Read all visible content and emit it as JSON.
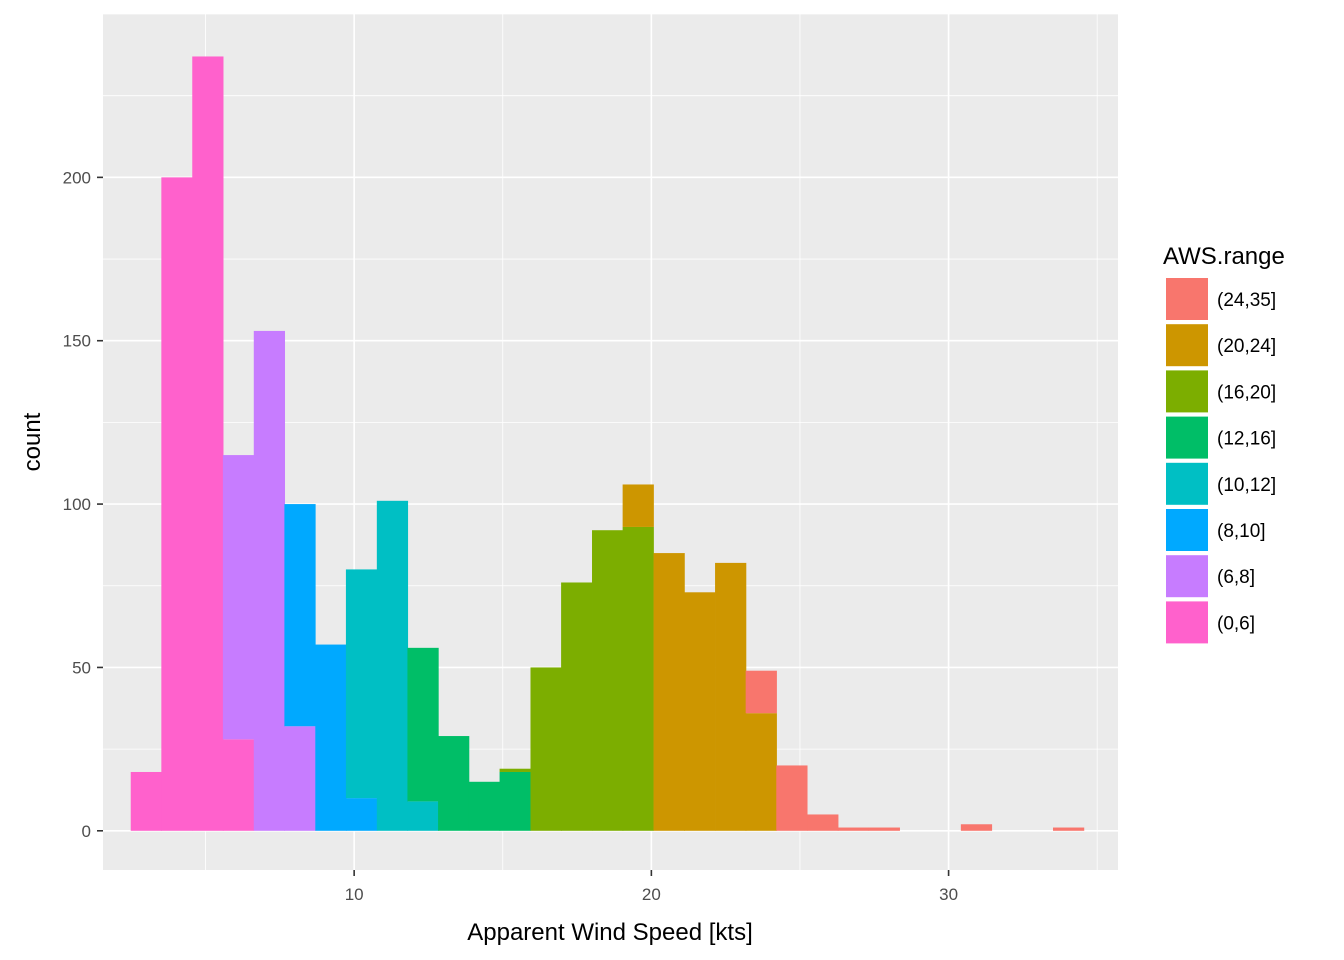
{
  "chart_data": {
    "type": "bar",
    "subtype": "stacked-histogram",
    "xlabel": "Apparent Wind Speed [kts]",
    "ylabel": "count",
    "xlim": [
      1.55,
      35.7
    ],
    "ylim": [
      -12,
      250
    ],
    "x_ticks": [
      10,
      20,
      30
    ],
    "y_ticks": [
      0,
      50,
      100,
      150,
      200
    ],
    "grid": true,
    "bin_width": 1.034,
    "legend": {
      "title": "AWS.range",
      "placement": "right",
      "entries": [
        {
          "label": "(24,35]",
          "color": "#F8766D"
        },
        {
          "label": "(20,24]",
          "color": "#CD9600"
        },
        {
          "label": "(16,20]",
          "color": "#7CAE00"
        },
        {
          "label": "(12,16]",
          "color": "#00BE67"
        },
        {
          "label": "(10,12]",
          "color": "#00BFC4"
        },
        {
          "label": "(8,10]",
          "color": "#00A9FF"
        },
        {
          "label": "(6,8]",
          "color": "#C77CFF"
        },
        {
          "label": "(0,6]",
          "color": "#FF61CC"
        }
      ]
    },
    "bins": [
      {
        "x": 3.0,
        "stack": [
          [
            "(0,6]",
            18
          ]
        ]
      },
      {
        "x": 4.03,
        "stack": [
          [
            "(0,6]",
            200
          ]
        ]
      },
      {
        "x": 5.07,
        "stack": [
          [
            "(0,6]",
            237
          ]
        ]
      },
      {
        "x": 6.1,
        "stack": [
          [
            "(0,6]",
            28
          ],
          [
            "(6,8]",
            87
          ]
        ]
      },
      {
        "x": 7.14,
        "stack": [
          [
            "(6,8]",
            153
          ]
        ]
      },
      {
        "x": 8.17,
        "stack": [
          [
            "(6,8]",
            32
          ],
          [
            "(8,10]",
            68
          ]
        ]
      },
      {
        "x": 9.21,
        "stack": [
          [
            "(8,10]",
            57
          ]
        ]
      },
      {
        "x": 10.24,
        "stack": [
          [
            "(8,10]",
            10
          ],
          [
            "(10,12]",
            70
          ]
        ]
      },
      {
        "x": 11.28,
        "stack": [
          [
            "(10,12]",
            101
          ]
        ]
      },
      {
        "x": 12.31,
        "stack": [
          [
            "(10,12]",
            9
          ],
          [
            "(12,16]",
            47
          ]
        ]
      },
      {
        "x": 13.34,
        "stack": [
          [
            "(12,16]",
            29
          ]
        ]
      },
      {
        "x": 14.38,
        "stack": [
          [
            "(12,16]",
            15
          ]
        ]
      },
      {
        "x": 15.41,
        "stack": [
          [
            "(12,16]",
            18
          ],
          [
            "(16,20]",
            1
          ]
        ]
      },
      {
        "x": 16.45,
        "stack": [
          [
            "(16,20]",
            50
          ]
        ]
      },
      {
        "x": 17.48,
        "stack": [
          [
            "(16,20]",
            76
          ]
        ]
      },
      {
        "x": 18.52,
        "stack": [
          [
            "(16,20]",
            92
          ]
        ]
      },
      {
        "x": 19.55,
        "stack": [
          [
            "(16,20]",
            93
          ],
          [
            "(20,24]",
            13
          ]
        ]
      },
      {
        "x": 20.59,
        "stack": [
          [
            "(20,24]",
            85
          ]
        ]
      },
      {
        "x": 21.62,
        "stack": [
          [
            "(20,24]",
            73
          ]
        ]
      },
      {
        "x": 22.66,
        "stack": [
          [
            "(20,24]",
            82
          ]
        ]
      },
      {
        "x": 23.69,
        "stack": [
          [
            "(20,24]",
            36
          ],
          [
            "(24,35]",
            13
          ]
        ]
      },
      {
        "x": 24.72,
        "stack": [
          [
            "(24,35]",
            20
          ]
        ]
      },
      {
        "x": 25.76,
        "stack": [
          [
            "(24,35]",
            5
          ]
        ]
      },
      {
        "x": 26.79,
        "stack": [
          [
            "(24,35]",
            1
          ]
        ]
      },
      {
        "x": 27.83,
        "stack": [
          [
            "(24,35]",
            1
          ]
        ]
      },
      {
        "x": 30.93,
        "stack": [
          [
            "(24,35]",
            2
          ]
        ]
      },
      {
        "x": 34.03,
        "stack": [
          [
            "(24,35]",
            1
          ]
        ]
      }
    ]
  }
}
